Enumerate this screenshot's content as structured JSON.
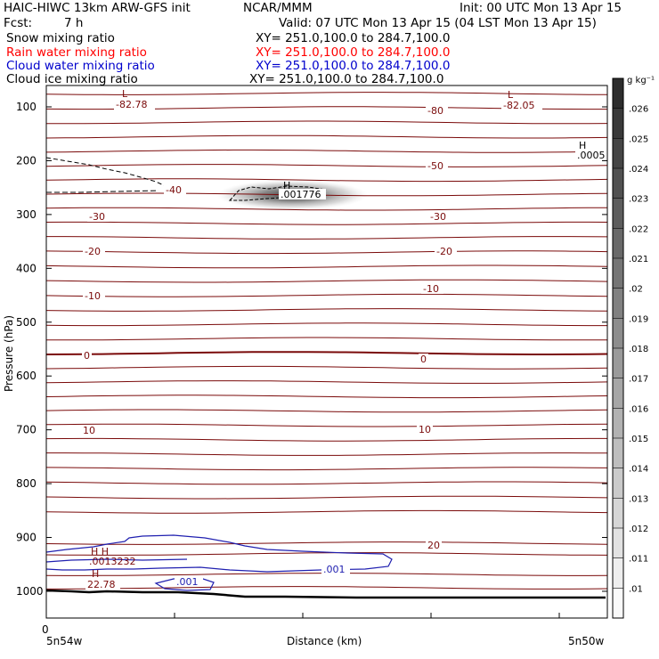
{
  "header": {
    "title_left": "HAIC-HIWC 13km ARW-GFS init",
    "org": "NCAR/MMM",
    "init": "Init: 00 UTC Mon 13 Apr 15",
    "fcst_label": "Fcst:",
    "fcst_value": "7 h",
    "valid": "Valid: 07 UTC Mon 13 Apr 15 (04 LST Mon 13 Apr 15)",
    "fields": [
      {
        "name": "Snow mixing ratio",
        "xy": "XY= 251.0,100.0 to 284.7,100.0",
        "color": "#000000"
      },
      {
        "name": "Rain water mixing ratio",
        "xy": "XY= 251.0,100.0 to 284.7,100.0",
        "color": "#ff0000"
      },
      {
        "name": "Cloud water mixing ratio",
        "xy": "XY= 251.0,100.0 to 284.7,100.0",
        "color": "#0000cc"
      },
      {
        "name": "Cloud ice mixing ratio",
        "xy": "XY= 251.0,100.0 to 284.7,100.0",
        "color": "#000000"
      }
    ]
  },
  "chart_data": {
    "type": "contour",
    "xlabel": "Distance (km)",
    "ylabel": "Pressure (hPa)",
    "ylim": [
      1050,
      40
    ],
    "x_tick_zero": "0",
    "x_left_label": "5n54w",
    "x_right_label": "5n50w",
    "y_ticks": [
      "100",
      "200",
      "300",
      "400",
      "500",
      "600",
      "700",
      "800",
      "900",
      "1000"
    ],
    "y_tick_values": [
      100,
      200,
      300,
      400,
      500,
      600,
      700,
      800,
      900,
      1000
    ],
    "colorbar": {
      "unit": "g kg⁻¹",
      "levels": [
        ".01",
        ".011",
        ".012",
        ".013",
        ".014",
        ".015",
        ".016",
        ".017",
        ".018",
        ".019",
        ".02",
        ".021",
        ".022",
        ".023",
        ".024",
        ".025",
        ".026"
      ]
    },
    "temperature_levels": [
      -80,
      -70,
      -60,
      -50,
      -40,
      -30,
      -20,
      -10,
      0,
      10,
      20
    ],
    "contour_labels": [
      {
        "text": "-82.78",
        "series": "temp"
      },
      {
        "text": "-82.05",
        "series": "temp"
      },
      {
        "text": "-80",
        "series": "temp"
      },
      {
        "text": "-50",
        "series": "temp"
      },
      {
        "text": "-40",
        "series": "temp"
      },
      {
        "text": "-30",
        "series": "temp"
      },
      {
        "text": "-30",
        "series": "temp"
      },
      {
        "text": "-20",
        "series": "temp"
      },
      {
        "text": "-20",
        "series": "temp"
      },
      {
        "text": "-10",
        "series": "temp"
      },
      {
        "text": "-10",
        "series": "temp"
      },
      {
        "text": "0",
        "series": "temp"
      },
      {
        "text": "0",
        "series": "temp"
      },
      {
        "text": "10",
        "series": "temp"
      },
      {
        "text": "10",
        "series": "temp"
      },
      {
        "text": "20",
        "series": "temp"
      },
      {
        "text": "22.78",
        "series": "temp"
      },
      {
        "text": ".001",
        "series": "cloudwater"
      },
      {
        "text": ".001",
        "series": "cloudwater"
      },
      {
        "text": ".001776",
        "series": "ice"
      },
      {
        "text": ".0005",
        "series": "ice"
      }
    ],
    "extrema": [
      {
        "mark": "L",
        "series": "temp"
      },
      {
        "mark": "L",
        "series": "temp"
      },
      {
        "mark": "H",
        "series": "ice"
      },
      {
        "mark": "H",
        "series": "ice"
      },
      {
        "mark": "H",
        "series": "temp"
      }
    ],
    "series_colors": {
      "temp": "#7a0a0a",
      "cloudwater": "#2020b0",
      "ice": "#000000"
    }
  }
}
